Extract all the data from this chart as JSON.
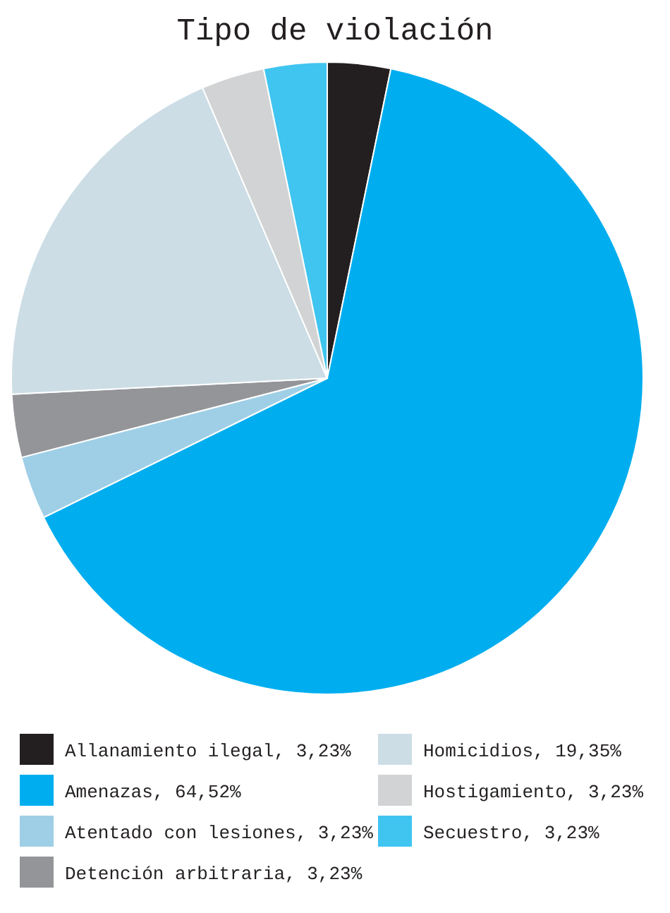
{
  "chart_data": {
    "type": "pie",
    "title": "Tipo de violación",
    "categories": [
      "Allanamiento ilegal, 3,23%",
      "Amenazas, 64,52%",
      "Atentado con lesiones, 3,23%",
      "Detención arbitraria, 3,23%",
      "Homicidios, 19,35%",
      "Hostigamiento, 3,23%",
      "Secuestro, 3,23%"
    ],
    "values": [
      3.23,
      64.52,
      3.23,
      3.23,
      19.35,
      3.23,
      3.23
    ],
    "colors": [
      "#231f20",
      "#00aeef",
      "#9fcfe6",
      "#939598",
      "#ccdde6",
      "#d1d3d4",
      "#40c4f0"
    ],
    "legend": "bottom"
  }
}
